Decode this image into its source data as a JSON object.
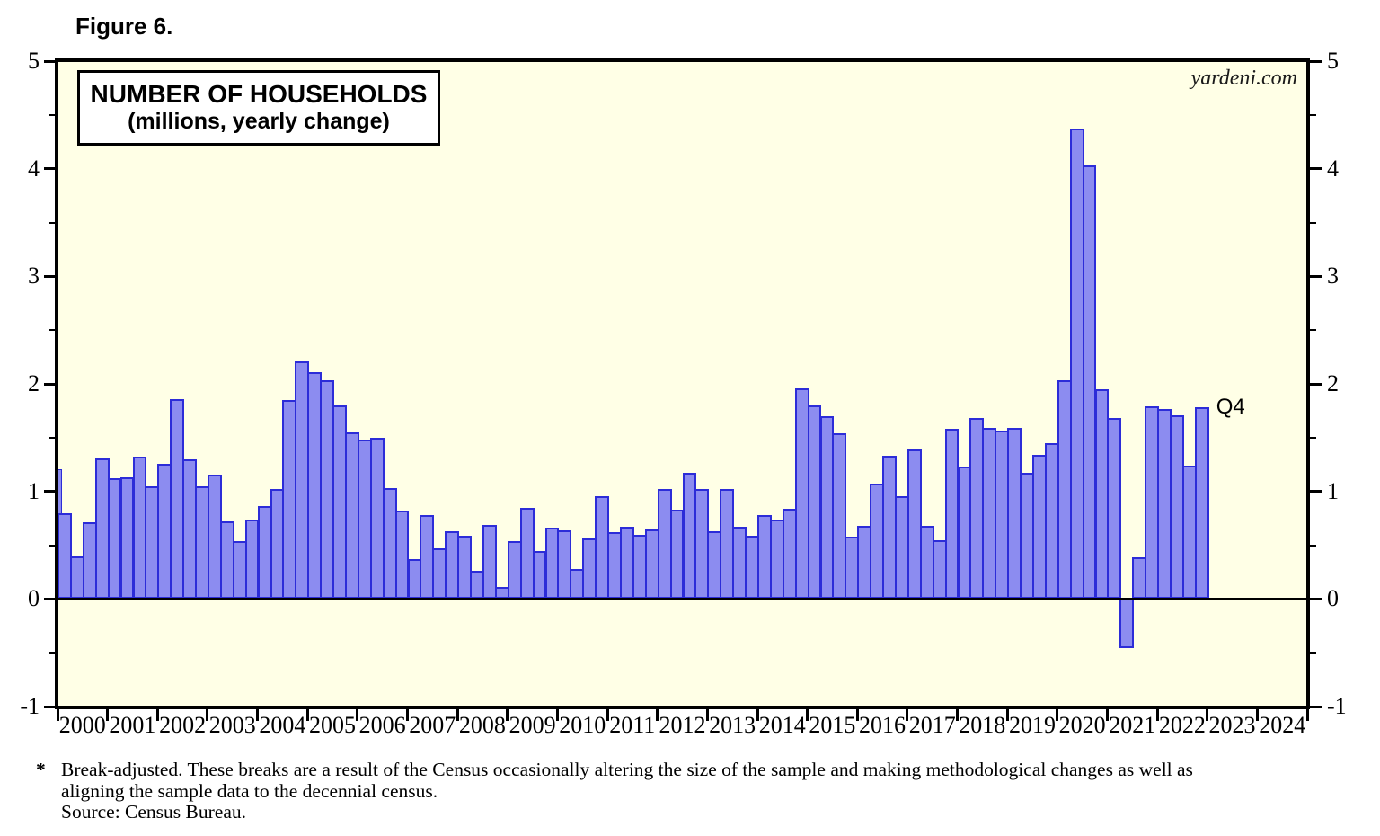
{
  "figure_label": "Figure 6.",
  "watermark": "yardeni.com",
  "chart_data": {
    "type": "bar",
    "title": "NUMBER OF HOUSEHOLDS",
    "subtitle": "(millions, yearly change)",
    "last_point_label": "Q4",
    "ylim": [
      -1,
      5
    ],
    "y_major_ticks": [
      5,
      4,
      3,
      2,
      1,
      0,
      -1
    ],
    "y_minor_ticks": [
      4.5,
      3.5,
      2.5,
      1.5,
      0.5,
      -0.5
    ],
    "y_axis_sides": "both",
    "grid": false,
    "legend": "none",
    "x_years": [
      2000,
      2001,
      2002,
      2003,
      2004,
      2005,
      2006,
      2007,
      2008,
      2009,
      2010,
      2011,
      2012,
      2013,
      2014,
      2015,
      2016,
      2017,
      2018,
      2019,
      2020,
      2021,
      2022,
      2023,
      2024
    ],
    "frequency": "quarterly",
    "data_start": "2000 Q1",
    "data_end": "2022 Q4",
    "edge_bar": {
      "note": "partially visible bar clipped by left axis",
      "value": 1.21
    },
    "series": [
      {
        "name": "Number of households (millions, yearly change)",
        "values": [
          0.8,
          0.4,
          0.71,
          1.31,
          1.12,
          1.13,
          1.32,
          1.05,
          1.26,
          1.86,
          1.3,
          1.05,
          1.16,
          0.72,
          0.54,
          0.74,
          0.86,
          1.02,
          1.85,
          2.21,
          2.11,
          2.03,
          1.8,
          1.55,
          1.48,
          1.5,
          1.03,
          0.82,
          0.37,
          0.78,
          0.47,
          0.63,
          0.59,
          0.26,
          0.69,
          0.11,
          0.54,
          0.85,
          0.45,
          0.66,
          0.64,
          0.28,
          0.56,
          0.96,
          0.62,
          0.67,
          0.6,
          0.65,
          1.02,
          0.83,
          1.17,
          1.02,
          0.63,
          1.02,
          0.67,
          0.59,
          0.78,
          0.74,
          0.84,
          1.96,
          1.8,
          1.7,
          1.54,
          0.58,
          0.68,
          1.07,
          1.33,
          0.96,
          1.39,
          0.68,
          0.55,
          1.58,
          1.23,
          1.68,
          1.59,
          1.57,
          1.59,
          1.17,
          1.34,
          1.45,
          2.03,
          4.37,
          4.03,
          1.95,
          1.68,
          -0.46,
          0.39,
          1.79,
          1.77,
          1.71,
          1.24,
          1.78
        ]
      }
    ],
    "colors": {
      "bar_fill": "#8c8cf0",
      "bar_border": "#2c2cd8",
      "plot_background": "#ffffe6",
      "frame": "#000000",
      "text": "#000000"
    }
  },
  "footnote": {
    "marker": "*",
    "line1": "Break-adjusted. These breaks are a result of the Census occasionally altering the size of the sample and making methodological changes as well as",
    "line2": "aligning the sample data to the decennial census.",
    "line3": "Source: Census Bureau."
  }
}
